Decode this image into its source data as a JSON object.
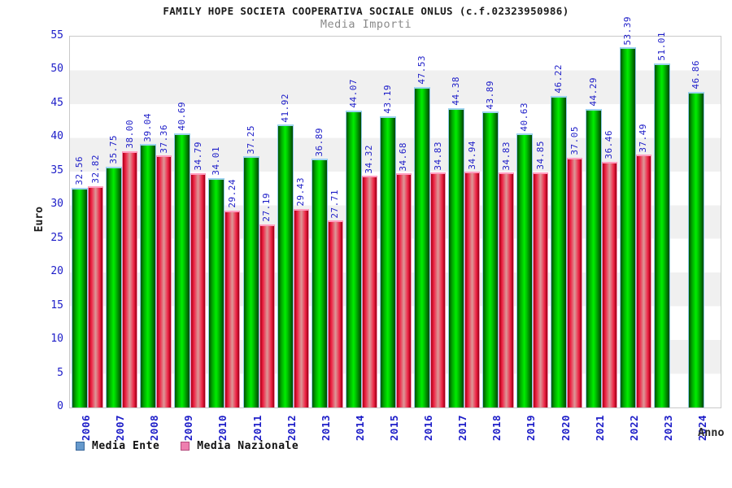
{
  "header": {
    "title": "FAMILY HOPE SOCIETA COOPERATIVA SOCIALE ONLUS (c.f.02323950986)",
    "subtitle": "Media Importi"
  },
  "axes": {
    "y_label": "Euro",
    "x_label": "Anno"
  },
  "legend": {
    "items": [
      {
        "label": "Media Ente",
        "color": "#6699cc"
      },
      {
        "label": "Media Nazionale",
        "color": "#ee7faf"
      }
    ]
  },
  "chart_data": {
    "type": "bar",
    "title": "FAMILY HOPE SOCIETA COOPERATIVA SOCIALE ONLUS (c.f.02323950986)",
    "subtitle": "Media Importi",
    "xlabel": "Anno",
    "ylabel": "Euro",
    "ylim": [
      0,
      55
    ],
    "y_ticks": [
      0,
      5,
      10,
      15,
      20,
      25,
      30,
      35,
      40,
      45,
      50,
      55
    ],
    "grid": "alternating-horizontal-bands",
    "band_colors": [
      "#ffffff",
      "#f0f0f0"
    ],
    "legend_position": "bottom-left",
    "value_label_color": "#1c1cc8",
    "categories": [
      "2006",
      "2007",
      "2008",
      "2009",
      "2010",
      "2011",
      "2012",
      "2013",
      "2014",
      "2015",
      "2016",
      "2017",
      "2018",
      "2019",
      "2020",
      "2021",
      "2022",
      "2023",
      "2024"
    ],
    "series": [
      {
        "name": "Media Ente",
        "bar_color": "#00cc00",
        "values": [
          32.56,
          35.75,
          39.04,
          40.69,
          34.01,
          37.25,
          41.92,
          36.89,
          44.07,
          43.19,
          47.53,
          44.38,
          43.89,
          40.63,
          46.22,
          44.29,
          53.39,
          51.01,
          46.86
        ]
      },
      {
        "name": "Media Nazionale",
        "bar_color": "#ee2244",
        "values": [
          32.82,
          38.0,
          37.36,
          34.79,
          29.24,
          27.19,
          29.43,
          27.71,
          34.32,
          34.68,
          34.83,
          34.94,
          34.83,
          34.85,
          37.05,
          36.46,
          37.49,
          null,
          null
        ]
      }
    ]
  }
}
